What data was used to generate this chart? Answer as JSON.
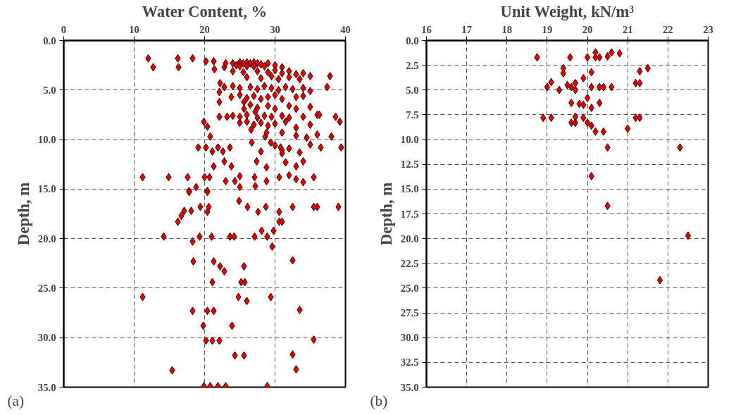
{
  "chart_data": [
    {
      "type": "scatter",
      "xlabel": "Water Content, %",
      "ylabel": "Depth, m",
      "marker": "diamond",
      "grid": true,
      "annotations": [
        "(a)"
      ],
      "xlim": [
        0,
        40
      ],
      "xticks": [
        0,
        10,
        20,
        30,
        40
      ],
      "ylim": [
        35,
        0
      ],
      "yticks": [
        {
          "value": 0,
          "label": "0.0"
        },
        {
          "value": 5,
          "label": "5.0"
        },
        {
          "value": 10,
          "label": "10.0"
        },
        {
          "value": 15,
          "label": "15.0"
        },
        {
          "value": 20,
          "label": "20.0"
        },
        {
          "value": 25,
          "label": "25.0"
        },
        {
          "value": 30,
          "label": "30.0"
        },
        {
          "value": 35,
          "label": "35.0"
        }
      ],
      "series": [
        {
          "color": "#e00000",
          "x": [
            12.0,
            16.2,
            18.3,
            12.7,
            16.3,
            20.2,
            21.3,
            21.4,
            22.8,
            22.2,
            22.8,
            22.1,
            23.8,
            22.1,
            25.6,
            25.6,
            27.2,
            19.9,
            20.4,
            22.1,
            23.2,
            25.0,
            26.6,
            20.8,
            19.1,
            20.2,
            21.9,
            23.6,
            21.1,
            22.6,
            22.8,
            21.3,
            23.8,
            11.2,
            14.9,
            17.6,
            20.0,
            20.7,
            18.8,
            17.8,
            20.4,
            23.0,
            24.3,
            25.0,
            25.0,
            27.1,
            27.2,
            28.8,
            30.6,
            26.7,
            28.0,
            29.4,
            30.8,
            28.8,
            27.4,
            28.6,
            28.8,
            17.8,
            20.4,
            24.9,
            26.1,
            27.6,
            28.7,
            30.6,
            30.6,
            19.4,
            20.6,
            20.4,
            18.1,
            17.1,
            16.7,
            16.2,
            14.2,
            19.3,
            18.3,
            21.0,
            23.6,
            24.2,
            27.1,
            28.1,
            28.9,
            29.8,
            29.6,
            18.4,
            21.3,
            22.2,
            22.8,
            25.6,
            21.1,
            25.2,
            25.7,
            11.2,
            24.8,
            26.0,
            29.4,
            18.3,
            20.4,
            21.3,
            19.8,
            23.9,
            20.2,
            21.1,
            22.1,
            24.3,
            25.6,
            15.4,
            19.9,
            20.8,
            21.9,
            23.0,
            28.9,
            23,
            24,
            25,
            25.5,
            26,
            26.5,
            27,
            27.5,
            28,
            29,
            24.5,
            25,
            26,
            27,
            28.5,
            30,
            31,
            24,
            25.5,
            27.5,
            29,
            30,
            31,
            32,
            33,
            34,
            26,
            28,
            29.5,
            30.5,
            32,
            33.5,
            35,
            24,
            25,
            26.5,
            27.5,
            28.5,
            29.5,
            30.5,
            31.5,
            32.5,
            34,
            35,
            25,
            26,
            27,
            28,
            29,
            30,
            31,
            33,
            34,
            26.5,
            27.5,
            29,
            30,
            32,
            33,
            35,
            24,
            25,
            26,
            27.5,
            28.5,
            29.5,
            31,
            32,
            34,
            36,
            26,
            27,
            28,
            29,
            30,
            31.5,
            33,
            35,
            31,
            33,
            34.5,
            36,
            30,
            31,
            32,
            33.5,
            35,
            36.5,
            31,
            31.5,
            33,
            34,
            32,
            33,
            34,
            35.5,
            37.8,
            37.4,
            36.3,
            38.6,
            39.2,
            38,
            39.4,
            35.5,
            36,
            39,
            32.5,
            32.5,
            33.5,
            35.5,
            32.5,
            33,
            31
          ],
          "values": [
            1.8,
            1.8,
            1.8,
            2.7,
            2.7,
            2.1,
            2.1,
            2.9,
            2.7,
            4.3,
            4.7,
            5.2,
            5.7,
            6.2,
            6.2,
            6.9,
            7.2,
            8.2,
            8.7,
            7.7,
            7.7,
            8.3,
            9.0,
            9.7,
            10.8,
            10.8,
            10.8,
            10.8,
            11.2,
            11.2,
            12.2,
            12.7,
            12.7,
            13.8,
            13.8,
            13.8,
            13.8,
            13.8,
            14.8,
            15.2,
            15.2,
            14.2,
            14.2,
            13.7,
            14.8,
            13.8,
            14.7,
            14.2,
            13.8,
            10.3,
            11.2,
            10.3,
            10.8,
            12.8,
            12.2,
            9.7,
            9.3,
            15.3,
            15.3,
            16.2,
            16.8,
            17.3,
            16.8,
            17.3,
            18.3,
            16.8,
            16.8,
            17.3,
            17.2,
            17.2,
            17.7,
            18.3,
            19.8,
            19.8,
            20.3,
            19.8,
            19.8,
            19.8,
            19.8,
            19.2,
            19.8,
            19.2,
            20.8,
            22.3,
            22.3,
            22.8,
            23.3,
            22.8,
            24.4,
            24.4,
            24.4,
            25.9,
            25.9,
            26.3,
            25.9,
            27.3,
            27.3,
            27.3,
            28.8,
            28.8,
            30.3,
            30.3,
            30.3,
            31.8,
            31.8,
            33.3,
            34.9,
            34.9,
            34.9,
            34.9,
            34.9,
            2.3,
            2.3,
            2.2,
            2.3,
            2.2,
            2.3,
            2.2,
            2.3,
            2.4,
            2.3,
            2.5,
            2.6,
            2.6,
            2.6,
            2.6,
            2.5,
            2.7,
            3.1,
            3.2,
            3.1,
            3.2,
            3.0,
            3.3,
            3.1,
            3.4,
            3.3,
            3.7,
            3.8,
            3.6,
            3.9,
            3.7,
            3.9,
            3.6,
            4.6,
            4.8,
            4.7,
            4.9,
            4.6,
            4.8,
            5.0,
            4.7,
            4.9,
            4.8,
            5.1,
            5.5,
            5.8,
            5.6,
            5.9,
            5.7,
            5.5,
            5.9,
            5.7,
            5.6,
            6.5,
            6.8,
            6.6,
            6.9,
            6.6,
            6.9,
            6.7,
            7.6,
            7.7,
            7.5,
            7.8,
            7.6,
            7.7,
            7.6,
            7.8,
            7.7,
            7.5,
            8.2,
            8.5,
            8.3,
            8.6,
            8.4,
            8.2,
            8.8,
            8.5,
            9.3,
            9.6,
            9.8,
            9.5,
            10.6,
            11.1,
            10.9,
            11.3,
            10.5,
            10.8,
            11.4,
            12.3,
            12.7,
            12.2,
            13.6,
            14.0,
            14.3,
            13.8,
            3.6,
            4.7,
            7.5,
            7.7,
            8.2,
            9.7,
            10.8,
            16.8,
            16.8,
            16.8,
            16.8,
            22.2,
            27.2,
            30.2,
            31.7,
            33.2,
            18.3
          ]
        }
      ]
    },
    {
      "type": "scatter",
      "xlabel": "Unit Weight, kN/m³",
      "ylabel": "Depth, m",
      "marker": "diamond",
      "grid": true,
      "annotations": [
        "(b)"
      ],
      "xlim": [
        16,
        23
      ],
      "xticks": [
        16,
        17,
        18,
        19,
        20,
        21,
        22,
        23
      ],
      "ylim": [
        35,
        0
      ],
      "yticks": [
        {
          "value": 0,
          "label": "0.0"
        },
        {
          "value": 2.5,
          "label": "2.5"
        },
        {
          "value": 5,
          "label": "5.0"
        },
        {
          "value": 7.5,
          "label": "7.5"
        },
        {
          "value": 10,
          "label": "10.0"
        },
        {
          "value": 12.5,
          "label": "12.5"
        },
        {
          "value": 15,
          "label": "15.0"
        },
        {
          "value": 17.5,
          "label": "17.5"
        },
        {
          "value": 20,
          "label": "20.0"
        },
        {
          "value": 22.5,
          "label": "22.5"
        },
        {
          "value": 25,
          "label": "25.0"
        },
        {
          "value": 27.5,
          "label": "27.5"
        },
        {
          "value": 30,
          "label": "30.0"
        },
        {
          "value": 32.5,
          "label": "32.5"
        },
        {
          "value": 35,
          "label": "35.0"
        }
      ],
      "series": [
        {
          "color": "#e00000",
          "x": [
            18.75,
            19.57,
            20.0,
            20.2,
            20.3,
            20.5,
            20.6,
            20.8,
            20.2,
            19.4,
            19.4,
            20.1,
            19.9,
            21.5,
            21.3,
            21.2,
            21.3,
            19.1,
            19.0,
            19.3,
            19.5,
            19.7,
            19.6,
            19.7,
            20.1,
            20.3,
            20.4,
            20.6,
            20.0,
            19.6,
            19.8,
            19.9,
            20.1,
            20.3,
            18.9,
            19.1,
            19.7,
            19.9,
            19.6,
            19.7,
            20.0,
            20.1,
            20.2,
            20.4,
            21.0,
            21.2,
            21.3,
            20.5,
            22.3,
            20.1,
            20.5,
            22.5,
            21.8
          ],
          "values": [
            1.7,
            1.7,
            1.7,
            1.7,
            1.7,
            1.6,
            1.2,
            1.3,
            1.2,
            2.8,
            3.3,
            3.2,
            3.8,
            2.8,
            3.1,
            4.3,
            4.3,
            4.2,
            4.7,
            5.0,
            4.5,
            4.3,
            4.7,
            5.0,
            4.7,
            4.7,
            4.7,
            4.7,
            5.8,
            6.3,
            6.4,
            6.5,
            6.8,
            6.3,
            7.8,
            7.8,
            7.7,
            7.8,
            8.3,
            8.3,
            8.3,
            8.6,
            9.2,
            9.2,
            8.9,
            7.8,
            7.8,
            10.8,
            10.8,
            13.7,
            16.7,
            19.7,
            24.2
          ]
        }
      ]
    }
  ]
}
